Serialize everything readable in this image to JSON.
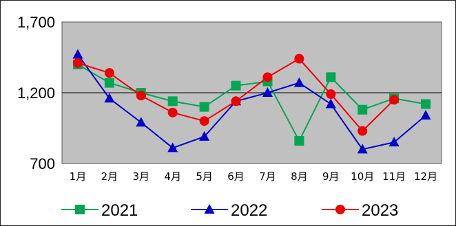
{
  "chart_data": {
    "type": "line",
    "title": "",
    "xlabel": "",
    "ylabel": "",
    "categories": [
      "1月",
      "2月",
      "3月",
      "4月",
      "5月",
      "6月",
      "7月",
      "8月",
      "9月",
      "10月",
      "11月",
      "12月"
    ],
    "ylim": [
      700,
      1700
    ],
    "yticks": [
      "1,700",
      "1,200",
      "700"
    ],
    "ytick_values": [
      1700,
      1200,
      700
    ],
    "grid": "horizontal at 1,200",
    "legend_position": "bottom",
    "plot_background": "#c0c0c0",
    "series": [
      {
        "name": "2021",
        "color": "#00a651",
        "marker": "square",
        "values": [
          1400,
          1270,
          1200,
          1140,
          1100,
          1250,
          1280,
          860,
          1310,
          1080,
          1160,
          1120
        ]
      },
      {
        "name": "2022",
        "color": "#0000cc",
        "marker": "triangle",
        "values": [
          1470,
          1160,
          990,
          810,
          890,
          1140,
          1200,
          1270,
          1120,
          800,
          850,
          1040
        ]
      },
      {
        "name": "2023",
        "color": "#ee0000",
        "marker": "circle",
        "values": [
          1410,
          1340,
          1180,
          1060,
          1000,
          1140,
          1310,
          1440,
          1190,
          930,
          1150,
          null
        ]
      }
    ]
  }
}
